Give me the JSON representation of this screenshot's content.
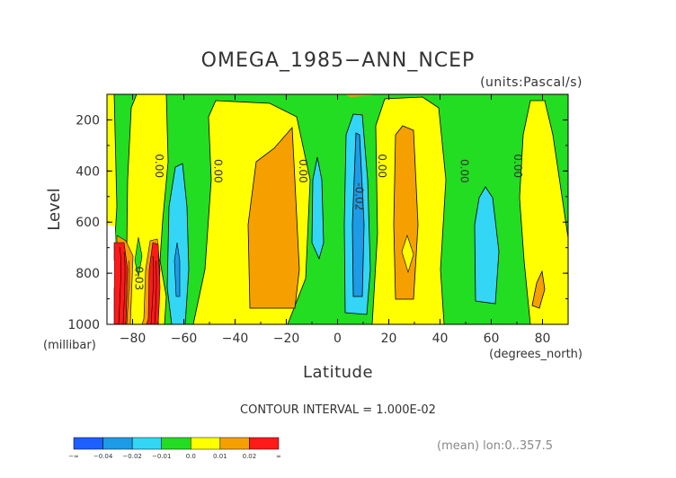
{
  "chart_data": {
    "type": "heatmap",
    "title": "OMEGA_1985−ANN_NCEP",
    "units": "(units:Pascal/s)",
    "xlabel": "Latitude",
    "x_units": "(degrees_north)",
    "ylabel": "Level",
    "y_units": "(millibar)",
    "xlim": [
      -90,
      90
    ],
    "ylim": [
      1000,
      100
    ],
    "x_ticks": [
      -80,
      -60,
      -40,
      -20,
      0,
      20,
      40,
      60,
      80
    ],
    "y_ticks": [
      200,
      400,
      600,
      800,
      1000
    ],
    "contour_interval": "CONTOUR INTERVAL = 1.000E-02",
    "contour_labels": [
      {
        "text": "0.00",
        "lat": -71,
        "level": 380
      },
      {
        "text": "0.00",
        "lat": -48,
        "level": 400
      },
      {
        "text": "0.00",
        "lat": -15,
        "level": 400
      },
      {
        "text": "0.00",
        "lat": 16,
        "level": 380
      },
      {
        "text": "0.00",
        "lat": 48,
        "level": 400
      },
      {
        "text": "0.00",
        "lat": 69,
        "level": 380
      },
      {
        "text": "-0.02",
        "lat": 7,
        "level": 500
      },
      {
        "text": "0.03",
        "lat": -79,
        "level": 820
      }
    ],
    "colorbar": {
      "ticks": [
        "−∞",
        "−0.04",
        "−0.02",
        "−0.01",
        "0.0",
        "0.01",
        "0.02",
        "∞"
      ],
      "colors": [
        "#1e60ff",
        "#1c9be6",
        "#33d6f5",
        "#22dd22",
        "#ffff00",
        "#f5a000",
        "#ff1a1a"
      ]
    },
    "footnote": "(mean) lon:0..357.5",
    "bands": [
      {
        "lat_min": -90,
        "lat_max": -80,
        "value": "0.0 to 0.01"
      },
      {
        "lat_min": -80,
        "lat_max": -73,
        "value": "> 0.02 (surface)"
      },
      {
        "lat_min": -73,
        "lat_max": -58,
        "value": "< -0.01"
      },
      {
        "lat_min": -58,
        "lat_max": -45,
        "value": "0.0 to 0.01"
      },
      {
        "lat_min": -40,
        "lat_max": -12,
        "value": "0.01 to 0.02"
      },
      {
        "lat_min": -12,
        "lat_max": 0,
        "value": "-0.01 to 0.0"
      },
      {
        "lat_min": 2,
        "lat_max": 14,
        "value": "< -0.02"
      },
      {
        "lat_min": 18,
        "lat_max": 35,
        "value": "0.01 to 0.02"
      },
      {
        "lat_min": 50,
        "lat_max": 65,
        "value": "-0.01 to 0.0"
      },
      {
        "lat_min": 72,
        "lat_max": 90,
        "value": "0.0 to 0.01"
      }
    ]
  }
}
